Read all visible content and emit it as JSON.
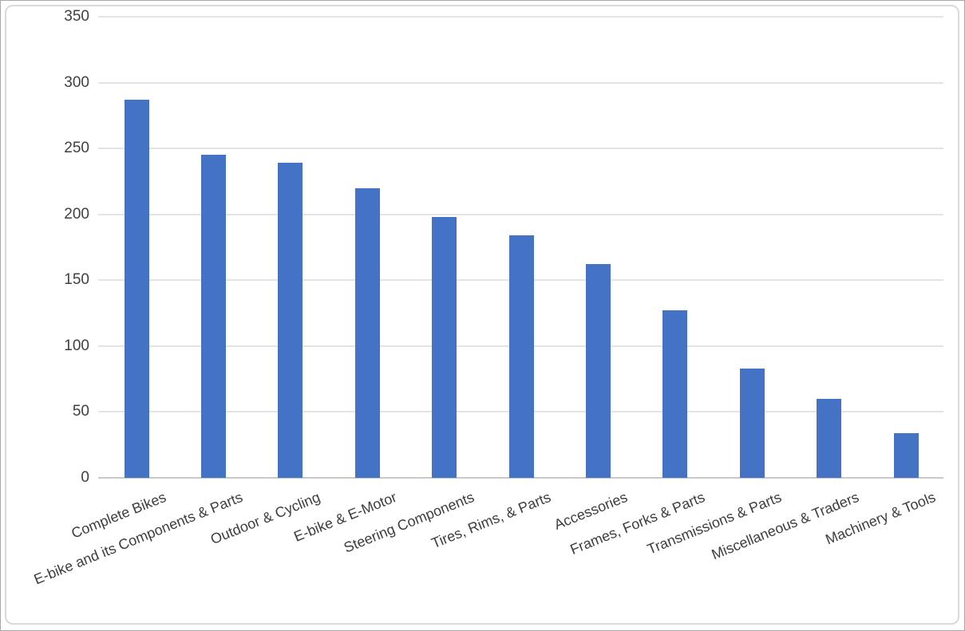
{
  "chart_data": {
    "type": "bar",
    "title": "",
    "xlabel": "",
    "ylabel": "",
    "categories": [
      "Complete Bikes",
      "E-bike and its Components & Parts",
      "Outdoor & Cycling",
      "E-bike & E-Motor",
      "Steering Components",
      "Tires, Rims, & Parts",
      "Accessories",
      "Frames, Forks & Parts",
      "Transmissions & Parts",
      "Miscellaneous & Traders",
      "Machinery & Tools"
    ],
    "values": [
      287,
      245,
      239,
      220,
      198,
      184,
      162,
      127,
      83,
      60,
      34
    ],
    "ylim": [
      0,
      350
    ],
    "yticks": [
      0,
      50,
      100,
      150,
      200,
      250,
      300,
      350
    ],
    "grid": true,
    "legend_position": "none",
    "x_label_rotation_deg": -22
  },
  "colors": {
    "bar": "#4472c4",
    "gridline": "#e4e4e4",
    "axis_line": "#c9c9c9",
    "tick_text": "#404040",
    "category_text": "#3d3d3d",
    "frame_border": "#d9d9d9",
    "background": "#ffffff"
  }
}
